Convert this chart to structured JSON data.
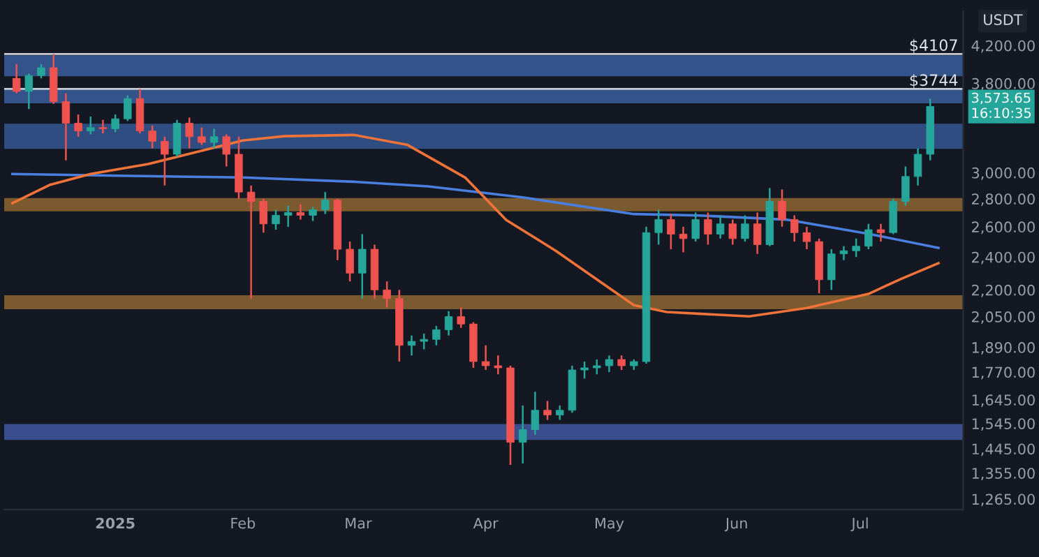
{
  "chart_data": {
    "type": "candlestick",
    "ylabel": "USDT",
    "log": "y",
    "grid": false,
    "x": [
      "2024-12-08",
      "2024-12-11",
      "2024-12-14",
      "2024-12-17",
      "2024-12-20",
      "2024-12-23",
      "2024-12-26",
      "2024-12-29",
      "2025-01-01",
      "2025-01-04",
      "2025-01-07",
      "2025-01-10",
      "2025-01-13",
      "2025-01-16",
      "2025-01-19",
      "2025-01-22",
      "2025-01-25",
      "2025-01-28",
      "2025-01-31",
      "2025-02-03",
      "2025-02-06",
      "2025-02-09",
      "2025-02-12",
      "2025-02-15",
      "2025-02-18",
      "2025-02-21",
      "2025-02-24",
      "2025-02-27",
      "2025-03-02",
      "2025-03-05",
      "2025-03-08",
      "2025-03-11",
      "2025-03-14",
      "2025-03-17",
      "2025-03-20",
      "2025-03-23",
      "2025-03-26",
      "2025-03-29",
      "2025-04-01",
      "2025-04-04",
      "2025-04-07",
      "2025-04-10",
      "2025-04-13",
      "2025-04-16",
      "2025-04-19",
      "2025-04-22",
      "2025-04-25",
      "2025-04-28",
      "2025-05-01",
      "2025-05-04",
      "2025-05-07",
      "2025-05-10",
      "2025-05-13",
      "2025-05-16",
      "2025-05-19",
      "2025-05-22",
      "2025-05-25",
      "2025-05-28",
      "2025-05-31",
      "2025-06-03",
      "2025-06-06",
      "2025-06-09",
      "2025-06-12",
      "2025-06-15",
      "2025-06-18",
      "2025-06-21",
      "2025-06-24",
      "2025-06-27",
      "2025-06-30",
      "2025-07-03",
      "2025-07-06",
      "2025-07-09",
      "2025-07-12",
      "2025-07-15",
      "2025-07-18"
    ],
    "ohlc": [
      [
        3850,
        4000,
        3700,
        3720
      ],
      [
        3720,
        3900,
        3550,
        3880
      ],
      [
        3880,
        4000,
        3850,
        3960
      ],
      [
        3960,
        4107,
        3600,
        3620
      ],
      [
        3620,
        3700,
        3100,
        3420
      ],
      [
        3420,
        3500,
        3300,
        3350
      ],
      [
        3350,
        3480,
        3320,
        3380
      ],
      [
        3380,
        3450,
        3330,
        3370
      ],
      [
        3370,
        3500,
        3340,
        3460
      ],
      [
        3460,
        3680,
        3440,
        3650
      ],
      [
        3650,
        3744,
        3330,
        3350
      ],
      [
        3350,
        3400,
        3200,
        3260
      ],
      [
        3260,
        3300,
        2900,
        3150
      ],
      [
        3150,
        3450,
        3130,
        3420
      ],
      [
        3420,
        3470,
        3200,
        3300
      ],
      [
        3300,
        3380,
        3230,
        3250
      ],
      [
        3250,
        3370,
        3200,
        3300
      ],
      [
        3300,
        3320,
        3050,
        3150
      ],
      [
        3150,
        3300,
        2800,
        2850
      ],
      [
        2850,
        2900,
        2150,
        2780
      ],
      [
        2780,
        2800,
        2560,
        2620
      ],
      [
        2620,
        2720,
        2580,
        2680
      ],
      [
        2680,
        2750,
        2600,
        2700
      ],
      [
        2700,
        2760,
        2650,
        2680
      ],
      [
        2680,
        2740,
        2640,
        2720
      ],
      [
        2720,
        2850,
        2690,
        2790
      ],
      [
        2790,
        2800,
        2380,
        2450
      ],
      [
        2450,
        2500,
        2250,
        2300
      ],
      [
        2300,
        2550,
        2150,
        2450
      ],
      [
        2450,
        2480,
        2150,
        2200
      ],
      [
        2200,
        2250,
        2100,
        2150
      ],
      [
        2150,
        2200,
        1820,
        1900
      ],
      [
        1900,
        1950,
        1850,
        1920
      ],
      [
        1920,
        1960,
        1880,
        1930
      ],
      [
        1930,
        2000,
        1900,
        1980
      ],
      [
        1980,
        2080,
        1950,
        2050
      ],
      [
        2050,
        2100,
        1990,
        2010
      ],
      [
        2010,
        2020,
        1790,
        1820
      ],
      [
        1820,
        1900,
        1780,
        1800
      ],
      [
        1800,
        1850,
        1760,
        1790
      ],
      [
        1790,
        1800,
        1385,
        1470
      ],
      [
        1470,
        1620,
        1390,
        1520
      ],
      [
        1520,
        1680,
        1500,
        1600
      ],
      [
        1600,
        1640,
        1560,
        1580
      ],
      [
        1580,
        1620,
        1560,
        1600
      ],
      [
        1600,
        1800,
        1590,
        1780
      ],
      [
        1780,
        1820,
        1740,
        1790
      ],
      [
        1790,
        1830,
        1760,
        1800
      ],
      [
        1800,
        1850,
        1770,
        1830
      ],
      [
        1830,
        1850,
        1780,
        1800
      ],
      [
        1800,
        1830,
        1780,
        1820
      ],
      [
        1820,
        2600,
        1810,
        2560
      ],
      [
        2560,
        2720,
        2480,
        2650
      ],
      [
        2650,
        2690,
        2450,
        2550
      ],
      [
        2550,
        2600,
        2430,
        2520
      ],
      [
        2520,
        2700,
        2500,
        2650
      ],
      [
        2650,
        2700,
        2480,
        2550
      ],
      [
        2550,
        2680,
        2520,
        2620
      ],
      [
        2620,
        2650,
        2480,
        2520
      ],
      [
        2520,
        2680,
        2500,
        2620
      ],
      [
        2620,
        2700,
        2420,
        2480
      ],
      [
        2480,
        2880,
        2470,
        2780
      ],
      [
        2780,
        2870,
        2600,
        2650
      ],
      [
        2650,
        2680,
        2500,
        2560
      ],
      [
        2560,
        2600,
        2450,
        2500
      ],
      [
        2500,
        2520,
        2180,
        2260
      ],
      [
        2260,
        2450,
        2200,
        2420
      ],
      [
        2420,
        2470,
        2380,
        2440
      ],
      [
        2440,
        2520,
        2400,
        2470
      ],
      [
        2470,
        2620,
        2450,
        2580
      ],
      [
        2580,
        2620,
        2500,
        2560
      ],
      [
        2560,
        2800,
        2550,
        2780
      ],
      [
        2780,
        3050,
        2750,
        2970
      ],
      [
        2970,
        3200,
        2900,
        3150
      ],
      [
        3150,
        3650,
        3100,
        3574
      ]
    ],
    "series": [
      {
        "type": "line",
        "color": "#4a7fe0",
        "x": [
          "2024-12-07",
          "2025-01-02",
          "2025-02-01",
          "2025-02-28",
          "2025-03-18",
          "2025-04-10",
          "2025-05-07",
          "2025-05-23",
          "2025-06-13",
          "2025-07-03",
          "2025-07-20"
        ],
        "values": [
          2990,
          2976,
          2962,
          2929,
          2893,
          2810,
          2689,
          2679,
          2650,
          2552,
          2459
        ]
      },
      {
        "type": "line",
        "color": "#f0733a",
        "x": [
          "2024-12-07",
          "2024-12-16",
          "2024-12-26",
          "2025-01-09",
          "2025-02-01",
          "2025-02-11",
          "2025-02-28",
          "2025-03-13",
          "2025-03-27",
          "2025-04-06",
          "2025-04-18",
          "2025-05-07",
          "2025-05-15",
          "2025-06-04",
          "2025-06-18",
          "2025-07-03",
          "2025-07-11",
          "2025-07-20"
        ],
        "values": [
          2767,
          2904,
          2990,
          3070,
          3267,
          3304,
          3315,
          3229,
          2962,
          2647,
          2440,
          2113,
          2075,
          2051,
          2097,
          2177,
          2266,
          2361
        ]
      }
    ],
    "xlim": [
      "2024-12-05",
      "2025-07-26"
    ],
    "xticks": [
      {
        "value": "2025-01-01",
        "label": "2025"
      },
      {
        "value": "2025-02-01",
        "label": "Feb"
      },
      {
        "value": "2025-03-01",
        "label": "Mar"
      },
      {
        "value": "2025-04-01",
        "label": "Apr"
      },
      {
        "value": "2025-05-01",
        "label": "May"
      },
      {
        "value": "2025-06-01",
        "label": "Jun"
      },
      {
        "value": "2025-07-01",
        "label": "Jul"
      }
    ],
    "ylim": [
      1230,
      4600
    ],
    "yticks": [
      {
        "value": 4200,
        "label": "4,200.00"
      },
      {
        "value": 3800,
        "label": "3,800.00"
      },
      {
        "value": 3000,
        "label": "3,000.00"
      },
      {
        "value": 2800,
        "label": "2,800.00"
      },
      {
        "value": 2600,
        "label": "2,600.00"
      },
      {
        "value": 2400,
        "label": "2,400.00"
      },
      {
        "value": 2200,
        "label": "2,200.00"
      },
      {
        "value": 2050,
        "label": "2,050.00"
      },
      {
        "value": 1890,
        "label": "1,890.00"
      },
      {
        "value": 1770,
        "label": "1,770.00"
      },
      {
        "value": 1645,
        "label": "1,645.00"
      },
      {
        "value": 1545,
        "label": "1,545.00"
      },
      {
        "value": 1445,
        "label": "1,445.00"
      },
      {
        "value": 1355,
        "label": "1,355.00"
      },
      {
        "value": 1265,
        "label": "1,265.00"
      }
    ],
    "bands": [
      {
        "axis": "y",
        "from": 3872,
        "to": 4093,
        "color": "#33538a"
      },
      {
        "axis": "y",
        "from": 3604,
        "to": 3749,
        "color": "#33538a"
      },
      {
        "axis": "y",
        "from": 3195,
        "to": 3415,
        "color": "#2f4d80"
      },
      {
        "axis": "y",
        "from": 2708,
        "to": 2805,
        "color": "#7a5a2e"
      },
      {
        "axis": "y",
        "from": 2090,
        "to": 2169,
        "color": "#7a5a2e"
      },
      {
        "axis": "y",
        "from": 1479,
        "to": 1543,
        "color": "#3a4d8c"
      }
    ],
    "ref_lines": [
      {
        "axis": "y",
        "value": 4107,
        "label": "$4107",
        "color": "#c9cdd6"
      },
      {
        "axis": "y",
        "value": 3744,
        "label": "$3744",
        "color": "#c9cdd6"
      }
    ],
    "annotations": [
      "3,573.65\n16:10:35"
    ]
  }
}
